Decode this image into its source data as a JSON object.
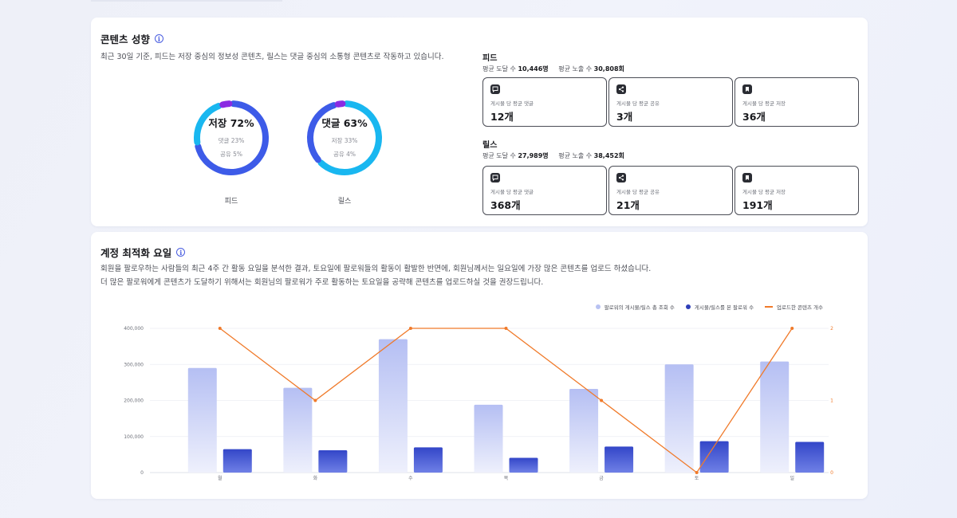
{
  "content_trend": {
    "title": "콘텐츠 성향",
    "description": "최근 30일 기준, 피드는 저장 중심의 정보성 콘텐츠, 릴스는 댓글 중심의 소통형 콘텐츠로 작동하고 있습니다.",
    "donuts": [
      {
        "label": "피드",
        "main": "저장 72%",
        "sub1": "댓글 23%",
        "sub2": "공유 5%",
        "segments": [
          {
            "name": "저장",
            "value": 72,
            "color": "#3d5be8"
          },
          {
            "name": "댓글",
            "value": 23,
            "color": "#19b7f0"
          },
          {
            "name": "공유",
            "value": 5,
            "color": "#8a2be2"
          }
        ]
      },
      {
        "label": "릴스",
        "main": "댓글 63%",
        "sub1": "저장 33%",
        "sub2": "공유 4%",
        "segments": [
          {
            "name": "댓글",
            "value": 63,
            "color": "#19b7f0"
          },
          {
            "name": "저장",
            "value": 33,
            "color": "#3d5be8"
          },
          {
            "name": "공유",
            "value": 4,
            "color": "#8a2be2"
          }
        ]
      }
    ],
    "feed": {
      "title": "피드",
      "reach_label": "평균 도달 수",
      "reach_value": "10,446명",
      "impr_label": "평균 노출 수",
      "impr_value": "30,808회",
      "stats": [
        {
          "icon": "comment-icon",
          "label": "게시물 당 평균 댓글",
          "value": "12개"
        },
        {
          "icon": "share-icon",
          "label": "게시물 당 평균 공유",
          "value": "3개"
        },
        {
          "icon": "bookmark-icon",
          "label": "게시물 당 평균 저장",
          "value": "36개"
        }
      ]
    },
    "reels": {
      "title": "릴스",
      "reach_label": "평균 도달 수",
      "reach_value": "27,989명",
      "impr_label": "평균 노출 수",
      "impr_value": "38,452회",
      "stats": [
        {
          "icon": "comment-icon",
          "label": "게시물 당 평균 댓글",
          "value": "368개"
        },
        {
          "icon": "share-icon",
          "label": "게시물 당 평균 공유",
          "value": "21개"
        },
        {
          "icon": "bookmark-icon",
          "label": "게시물 당 평균 저장",
          "value": "191개"
        }
      ]
    }
  },
  "optimization": {
    "title": "계정 최적화 요일",
    "description_line1": "회원을 팔로우하는 사람들의 최근 4주 간 활동 요일을 분석한 결과, 토요일에 팔로워들의 활동이 활발한 반면에, 회원님께서는 일요일에 가장 많은 콘텐츠를 업로드 하셨습니다.",
    "description_line2": "더 많은 팔로워에게 콘텐츠가 도달하기 위해서는 회원님의 팔로워가 주로 활동하는 토요일을 공략해 콘텐츠를 업로드하실 것을 권장드립니다."
  },
  "chart_data": {
    "type": "bar",
    "categories": [
      "월",
      "화",
      "수",
      "목",
      "금",
      "토",
      "일"
    ],
    "series": [
      {
        "name": "팔로워의 게시물/릴스 총 조회 수",
        "type": "bar",
        "axis": "left",
        "color": "#b8c2f2",
        "values": [
          290000,
          235000,
          370000,
          188000,
          232000,
          300000,
          308000
        ]
      },
      {
        "name": "게시물/릴스를 본 팔로워 수",
        "type": "bar",
        "axis": "left",
        "color": "#3a4fd0",
        "values": [
          65000,
          62000,
          70000,
          41000,
          72000,
          87000,
          85000
        ]
      },
      {
        "name": "업로드한 콘텐츠 개수",
        "type": "line",
        "axis": "right",
        "color": "#f07a2a",
        "values": [
          2,
          1,
          2,
          2,
          1,
          0,
          2
        ]
      }
    ],
    "y_left": {
      "ticks": [
        "0",
        "100,000",
        "200,000",
        "300,000",
        "400,000"
      ],
      "range": [
        0,
        400000
      ]
    },
    "y_right": {
      "ticks": [
        "0",
        "1",
        "2"
      ],
      "range": [
        0,
        2
      ]
    },
    "legend": "top-right",
    "grid": true
  }
}
